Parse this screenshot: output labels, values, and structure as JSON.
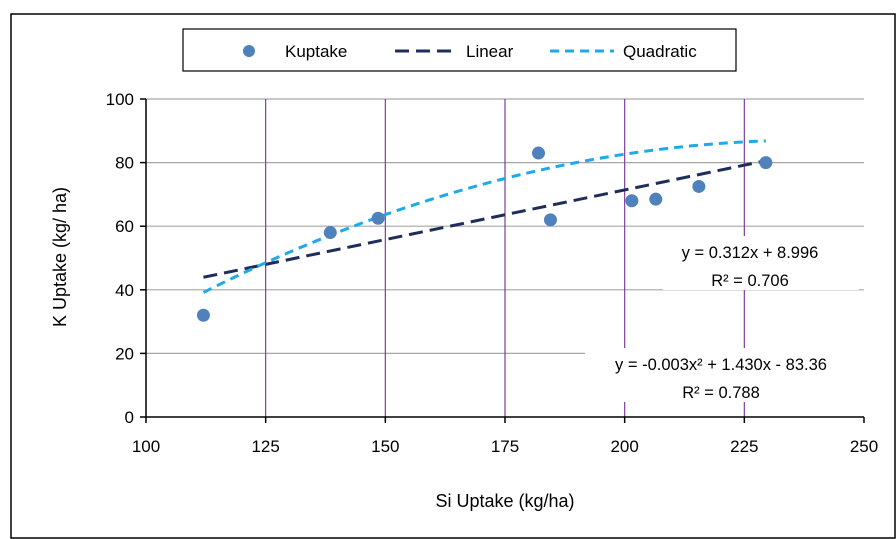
{
  "chart_data": {
    "type": "scatter",
    "xlabel": "Si Uptake (kg/ha)",
    "ylabel": "K Uptake (kg/ ha)",
    "xlim": [
      100,
      250
    ],
    "ylim": [
      0,
      100
    ],
    "x_ticks": [
      "100",
      "125",
      "150",
      "175",
      "200",
      "225",
      "250"
    ],
    "y_ticks": [
      "0",
      "20",
      "40",
      "60",
      "80",
      "100"
    ],
    "grid": "horizontal and vertical gridlines",
    "legend_position": "top",
    "legend": {
      "points": "Kuptake",
      "linear": "Linear",
      "quadratic": "Quadratic"
    },
    "series": [
      {
        "name": "Kuptake",
        "type": "scatter",
        "x": [
          112,
          138.5,
          148.5,
          182,
          184.5,
          201.5,
          206.5,
          215.5,
          229.5
        ],
        "y": [
          32,
          58,
          62.5,
          83,
          62,
          68,
          68.5,
          72.5,
          80
        ]
      },
      {
        "name": "Linear",
        "type": "line",
        "x_range": [
          112,
          229.5
        ],
        "coefficients": {
          "slope": 0.312,
          "intercept": 8.996
        }
      },
      {
        "name": "Quadratic",
        "type": "line",
        "x_range": [
          112,
          229.5
        ],
        "coefficients": {
          "a": -0.003,
          "b": 1.43,
          "c": -83.36
        }
      }
    ],
    "annotations": {
      "linear_eq": "y = 0.312x + 8.996",
      "linear_r2": "R² = 0.706",
      "quad_eq": "y = -0.003x² + 1.430x - 83.36",
      "quad_r2": "R² = 0.788"
    },
    "colors": {
      "points": "#4f81bd",
      "linear": "#1f2d5c",
      "quadratic": "#1eaae8",
      "vgrid": "#7b3fa0",
      "hgrid": "#a6a6a6"
    }
  }
}
